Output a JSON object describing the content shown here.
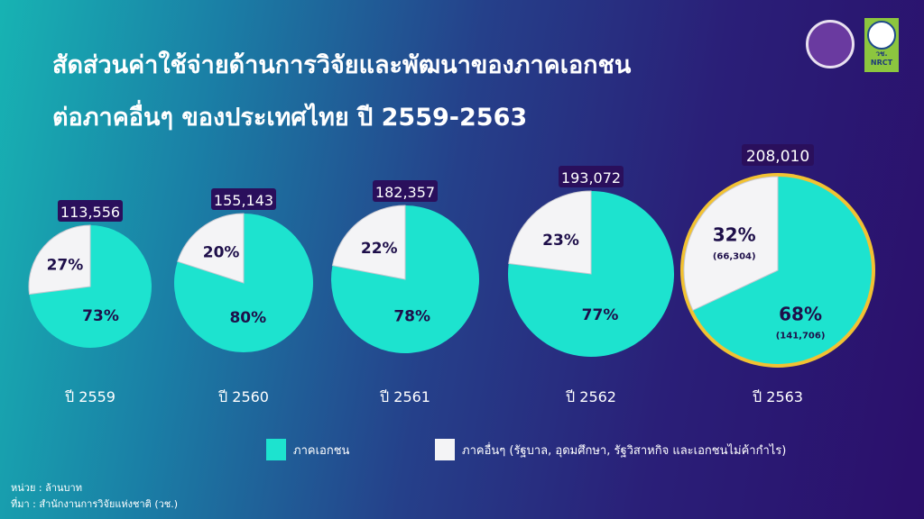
{
  "title": {
    "line1": "สัดส่วนค่าใช้จ่ายด้านการวิจัยและพัฒนาของภาคเอกชน",
    "line2": "ต่อภาคอื่นๆ ของประเทศไทย ปี 2559-2563"
  },
  "logos": {
    "nrct": "วช. NRCT"
  },
  "colors": {
    "private": "#1de3cf",
    "other": "#f4f4f6",
    "label_box": "#2a0f5c",
    "highlight_ring": "#f2c232",
    "text_dark": "#1e0f4a"
  },
  "chart_data": {
    "type": "pie",
    "series_names": [
      "ภาคเอกชน",
      "ภาคอื่นๆ (รัฐบาล, อุดมศึกษา, รัฐวิสาหกิจ และเอกชนไม่ค้ากำไร)"
    ],
    "charts": [
      {
        "year": "ปี 2559",
        "total": "113,556",
        "private_pct": 73,
        "other_pct": 27,
        "private_label": "73%",
        "other_label": "27%"
      },
      {
        "year": "ปี 2560",
        "total": "155,143",
        "private_pct": 80,
        "other_pct": 20,
        "private_label": "80%",
        "other_label": "20%"
      },
      {
        "year": "ปี 2561",
        "total": "182,357",
        "private_pct": 78,
        "other_pct": 22,
        "private_label": "78%",
        "other_label": "22%"
      },
      {
        "year": "ปี 2562",
        "total": "193,072",
        "private_pct": 77,
        "other_pct": 23,
        "private_label": "77%",
        "other_label": "23%"
      },
      {
        "year": "ปี 2563",
        "total": "208,010",
        "private_pct": 68,
        "other_pct": 32,
        "private_label": "68%",
        "other_label": "32%",
        "private_value": "(141,706)",
        "other_value": "(66,304)",
        "highlighted": true
      }
    ]
  },
  "legend": [
    {
      "label": "ภาคเอกชน"
    },
    {
      "label": "ภาคอื่นๆ (รัฐบาล, อุดมศึกษา, รัฐวิสาหกิจ และเอกชนไม่ค้ากำไร)"
    }
  ],
  "footer": {
    "unit": "หน่วย : ล้านบาท",
    "source": "ที่มา : สำนักงานการวิจัยแห่งชาติ (วช.)"
  }
}
